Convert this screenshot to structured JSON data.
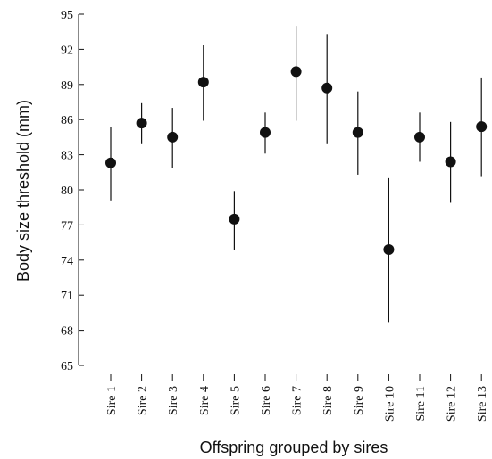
{
  "chart_data": {
    "type": "scatter",
    "title": "",
    "xlabel": "Offspring grouped by sires",
    "ylabel": "Body size threshold (mm)",
    "ylim": [
      65,
      95
    ],
    "yticks": [
      "65",
      "68",
      "71",
      "74",
      "77",
      "80",
      "83",
      "86",
      "89",
      "92",
      "95"
    ],
    "grid": false,
    "legend": "none",
    "marker_color": "#111111",
    "categories": [
      "Sire 1",
      "Sire 2",
      "Sire 3",
      "Sire 4",
      "Sire 5",
      "Sire 6",
      "Sire 7",
      "Sire 8",
      "Sire 9",
      "Sire 10",
      "Sire 11",
      "Sire 12",
      "Sire 13"
    ],
    "values": [
      82.3,
      85.7,
      84.5,
      89.2,
      77.5,
      84.9,
      90.1,
      88.7,
      84.9,
      74.9,
      84.5,
      82.4,
      85.4
    ],
    "error_low": [
      79.1,
      83.9,
      81.9,
      85.9,
      74.9,
      83.1,
      85.9,
      83.9,
      81.3,
      68.7,
      82.4,
      78.9,
      81.1
    ],
    "error_high": [
      85.4,
      87.4,
      87.0,
      92.4,
      79.9,
      86.6,
      94.0,
      93.3,
      88.4,
      81.0,
      86.6,
      85.8,
      89.6
    ]
  }
}
